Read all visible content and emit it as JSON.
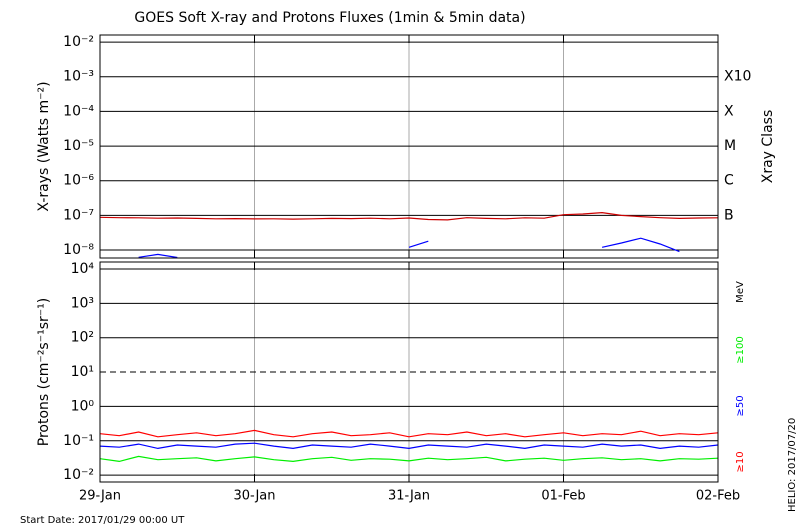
{
  "title": "GOES Soft X-ray and Protons Fluxes   (1min & 5min data)",
  "footer": "Start Date: 2017/01/29 00:00 UT",
  "credit": "HELIO: 2017/07/20",
  "chart_data": [
    {
      "type": "line",
      "log_y": true,
      "ylabel": "X-rays (Watts m⁻²)",
      "ylim": [
        5.9e-09,
        0.016
      ],
      "yticks": [
        {
          "value": 0.01,
          "label": "10⁻²"
        },
        {
          "value": 0.001,
          "label": "10⁻³"
        },
        {
          "value": 0.0001,
          "label": "10⁻⁴"
        },
        {
          "value": 1e-05,
          "label": "10⁻⁵"
        },
        {
          "value": 1e-06,
          "label": "10⁻⁶"
        },
        {
          "value": 1e-07,
          "label": "10⁻⁷"
        },
        {
          "value": 1e-08,
          "label": "10⁻⁸"
        }
      ],
      "xlim": [
        0,
        96
      ],
      "xticks": [
        0,
        24,
        48,
        72,
        96
      ],
      "grid": true,
      "class_axis_label": "Xray Class",
      "class_labels": [
        {
          "value": 0.001,
          "label": "X10"
        },
        {
          "value": 0.0001,
          "label": "X"
        },
        {
          "value": 1e-05,
          "label": "M"
        },
        {
          "value": 1e-06,
          "label": "C"
        },
        {
          "value": 1e-07,
          "label": "B"
        }
      ],
      "x": [
        0,
        3,
        6,
        9,
        12,
        15,
        18,
        21,
        24,
        27,
        30,
        33,
        36,
        39,
        42,
        45,
        48,
        51,
        54,
        57,
        60,
        63,
        66,
        69,
        72,
        75,
        78,
        81,
        84,
        87,
        90,
        93,
        96
      ],
      "series": [
        {
          "color": "#cc0000",
          "values": [
            8.8e-08,
            8.6e-08,
            8.5e-08,
            8.3e-08,
            8.4e-08,
            8.2e-08,
            8e-08,
            8.1e-08,
            7.9e-08,
            8e-08,
            7.8e-08,
            8e-08,
            8.2e-08,
            8.1e-08,
            8.3e-08,
            8e-08,
            8.4e-08,
            7.6e-08,
            7.4e-08,
            8.6e-08,
            8.2e-08,
            8e-08,
            8.5e-08,
            8.3e-08,
            1.05e-07,
            1.1e-07,
            1.2e-07,
            1e-07,
            9.2e-08,
            8.6e-08,
            8.2e-08,
            8.4e-08,
            8.5e-08
          ]
        },
        {
          "color": "#0000ff",
          "values": [
            null,
            null,
            6.2e-09,
            7.5e-09,
            6.1e-09,
            null,
            null,
            null,
            null,
            null,
            null,
            null,
            null,
            null,
            null,
            null,
            1.2e-08,
            1.8e-08,
            null,
            null,
            null,
            null,
            null,
            null,
            null,
            null,
            1.2e-08,
            1.6e-08,
            2.2e-08,
            1.5e-08,
            9e-09,
            null,
            null
          ]
        }
      ]
    },
    {
      "type": "line",
      "log_y": true,
      "ylabel": "Protons (cm⁻²s⁻¹sr⁻¹)",
      "ylim": [
        0.0063,
        16000
      ],
      "yticks": [
        {
          "value": 10000,
          "label": "10⁴"
        },
        {
          "value": 1000,
          "label": "10³"
        },
        {
          "value": 100,
          "label": "10²"
        },
        {
          "value": 10,
          "label": "10¹"
        },
        {
          "value": 1,
          "label": "10⁰"
        },
        {
          "value": 0.1,
          "label": "10⁻¹"
        },
        {
          "value": 0.01,
          "label": "10⁻²"
        }
      ],
      "threshold": 10,
      "energy_unit": "MeV",
      "xlim": [
        0,
        96
      ],
      "xticks": [
        {
          "value": 0,
          "label": "29-Jan"
        },
        {
          "value": 24,
          "label": "30-Jan"
        },
        {
          "value": 48,
          "label": "31-Jan"
        },
        {
          "value": 72,
          "label": "01-Feb"
        },
        {
          "value": 96,
          "label": "02-Feb"
        }
      ],
      "grid": true,
      "x": [
        0,
        3,
        6,
        9,
        12,
        15,
        18,
        21,
        24,
        27,
        30,
        33,
        36,
        39,
        42,
        45,
        48,
        51,
        54,
        57,
        60,
        63,
        66,
        69,
        72,
        75,
        78,
        81,
        84,
        87,
        90,
        93,
        96
      ],
      "series": [
        {
          "name": "≥100",
          "color": "#00ee00",
          "values": [
            0.03,
            0.025,
            0.035,
            0.028,
            0.03,
            0.032,
            0.026,
            0.03,
            0.034,
            0.028,
            0.025,
            0.03,
            0.033,
            0.027,
            0.03,
            0.029,
            0.026,
            0.031,
            0.028,
            0.03,
            0.033,
            0.026,
            0.029,
            0.031,
            0.027,
            0.03,
            0.032,
            0.028,
            0.03,
            0.026,
            0.03,
            0.029,
            0.031
          ]
        },
        {
          "name": "≥50",
          "color": "#0000ff",
          "values": [
            0.07,
            0.065,
            0.08,
            0.06,
            0.075,
            0.07,
            0.065,
            0.08,
            0.085,
            0.07,
            0.06,
            0.075,
            0.07,
            0.065,
            0.08,
            0.07,
            0.06,
            0.075,
            0.07,
            0.065,
            0.08,
            0.07,
            0.06,
            0.075,
            0.07,
            0.065,
            0.08,
            0.07,
            0.075,
            0.06,
            0.07,
            0.065,
            0.075
          ]
        },
        {
          "name": "≥10",
          "color": "#ff0000",
          "values": [
            0.16,
            0.14,
            0.18,
            0.13,
            0.15,
            0.17,
            0.14,
            0.16,
            0.2,
            0.15,
            0.13,
            0.16,
            0.18,
            0.14,
            0.15,
            0.17,
            0.13,
            0.16,
            0.15,
            0.18,
            0.14,
            0.16,
            0.13,
            0.15,
            0.17,
            0.14,
            0.16,
            0.15,
            0.19,
            0.14,
            0.16,
            0.15,
            0.17
          ]
        }
      ]
    }
  ]
}
